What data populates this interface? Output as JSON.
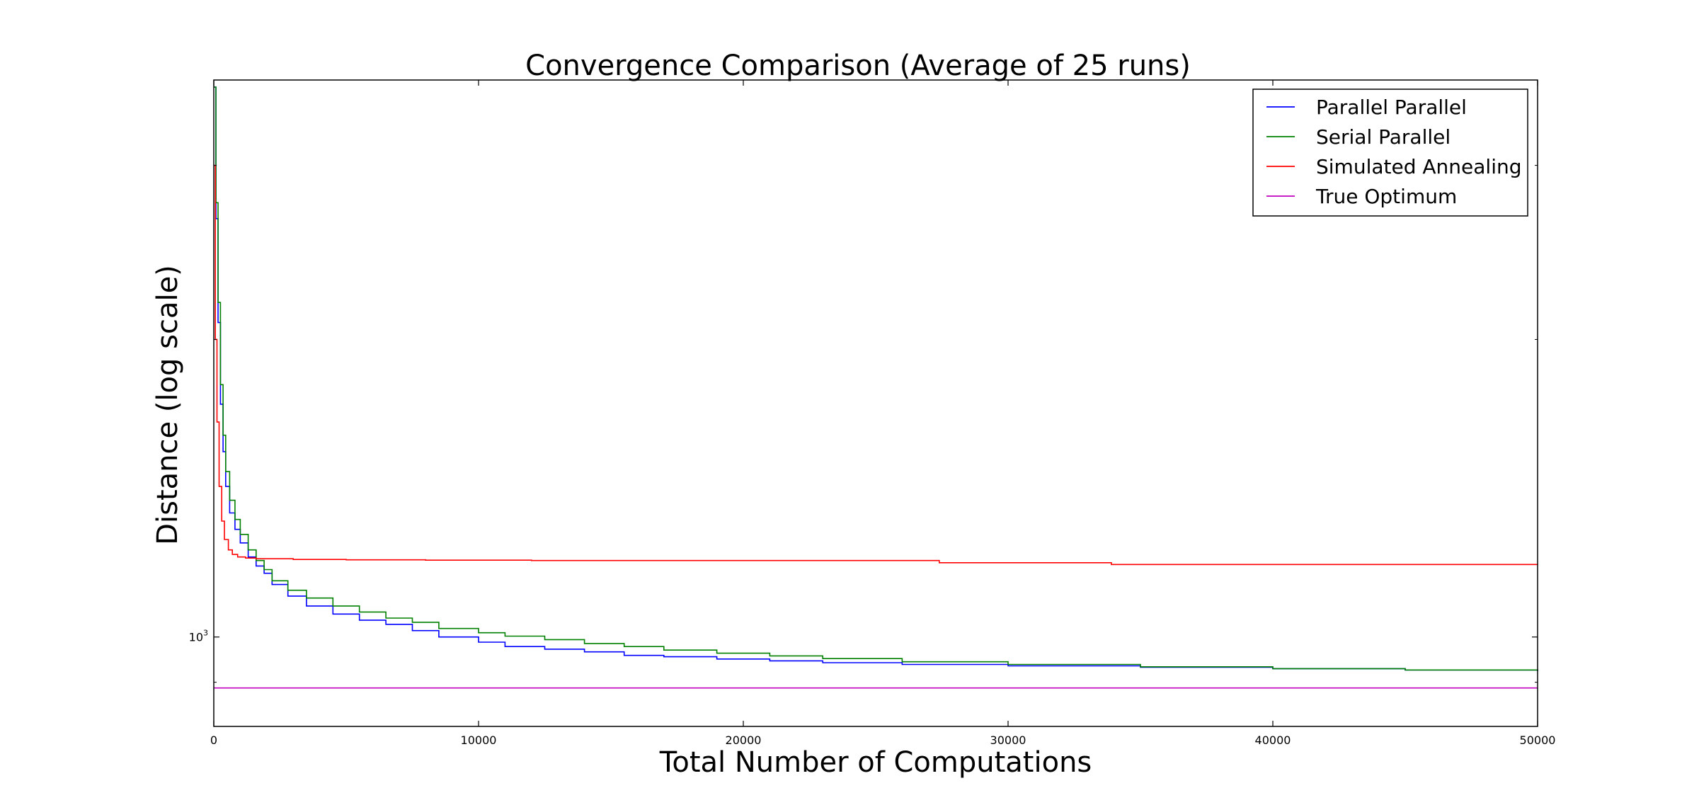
{
  "chart_data": {
    "type": "line",
    "title": "Convergence Comparison (Average of 25 runs)",
    "xlabel": "Total Number of Computations",
    "ylabel": "Distance (log scale)",
    "xlim": [
      0,
      50000
    ],
    "ylim": [
      812,
      3660
    ],
    "yscale": "log",
    "grid": false,
    "legend_position": "top-right",
    "x_ticks": [
      {
        "value": 0,
        "label": "0"
      },
      {
        "value": 10000,
        "label": "10000"
      },
      {
        "value": 20000,
        "label": "20000"
      },
      {
        "value": 30000,
        "label": "30000"
      },
      {
        "value": 40000,
        "label": "40000"
      },
      {
        "value": 50000,
        "label": "50000"
      }
    ],
    "y_ticks": [
      {
        "value": 1000,
        "base": "10",
        "exponent": "3"
      }
    ],
    "series": [
      {
        "name": "Parallel Parallel",
        "color": "#0000ff",
        "x": [
          0,
          80,
          160,
          250,
          350,
          450,
          600,
          800,
          1000,
          1300,
          1600,
          1900,
          2200,
          2800,
          3500,
          4500,
          5500,
          6500,
          7500,
          8500,
          10000,
          11000,
          12500,
          14000,
          15500,
          17000,
          19000,
          21000,
          23000,
          26000,
          30000,
          35000,
          40000,
          45000,
          50000
        ],
        "y": [
          3600,
          2650,
          2080,
          1720,
          1540,
          1420,
          1335,
          1285,
          1245,
          1205,
          1180,
          1160,
          1130,
          1100,
          1075,
          1055,
          1040,
          1030,
          1015,
          1000,
          988,
          978,
          972,
          966,
          958,
          955,
          950,
          946,
          942,
          938,
          935,
          932,
          929,
          926,
          924
        ]
      },
      {
        "name": "Serial Parallel",
        "color": "#008000",
        "x": [
          0,
          80,
          160,
          250,
          350,
          450,
          600,
          800,
          1000,
          1300,
          1600,
          1900,
          2200,
          2800,
          3500,
          4500,
          5500,
          6500,
          7500,
          8500,
          10000,
          11000,
          12500,
          14000,
          15500,
          17000,
          19000,
          21000,
          23000,
          26000,
          30000,
          35000,
          40000,
          45000,
          50000
        ],
        "y": [
          3600,
          2750,
          2180,
          1800,
          1600,
          1470,
          1375,
          1315,
          1270,
          1225,
          1195,
          1170,
          1140,
          1115,
          1095,
          1075,
          1060,
          1045,
          1035,
          1020,
          1010,
          1002,
          994,
          985,
          978,
          970,
          963,
          957,
          951,
          944,
          938,
          933,
          929,
          926,
          924
        ]
      },
      {
        "name": "Simulated Annealing",
        "color": "#ff0000",
        "x": [
          0,
          60,
          120,
          200,
          300,
          400,
          550,
          700,
          900,
          1200,
          1600,
          2000,
          3000,
          5000,
          8000,
          12000,
          20000,
          27300,
          27400,
          33800,
          33900,
          50000
        ],
        "y": [
          3000,
          2000,
          1650,
          1420,
          1310,
          1255,
          1225,
          1212,
          1205,
          1202,
          1200,
          1200,
          1198,
          1197,
          1196,
          1195,
          1195,
          1195,
          1189,
          1189,
          1184,
          1183
        ]
      },
      {
        "name": "True Optimum",
        "color": "#bf00bf",
        "x": [
          0,
          50000
        ],
        "y": [
          888,
          888
        ]
      }
    ]
  }
}
